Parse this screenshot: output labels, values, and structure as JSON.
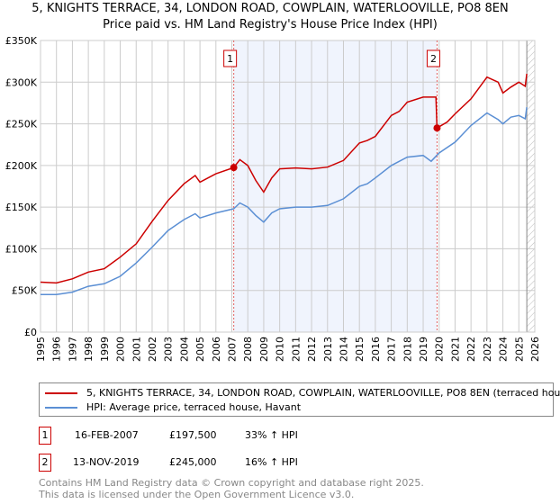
{
  "title": "5, KNIGHTS TERRACE, 34, LONDON ROAD, COWPLAIN, WATERLOOVILLE, PO8 8EN",
  "subtitle": "Price paid vs. HM Land Registry's House Price Index (HPI)",
  "chart_data": {
    "type": "line",
    "title": "5, KNIGHTS TERRACE, 34, LONDON ROAD, COWPLAIN, WATERLOOVILLE, PO8 8EN",
    "subtitle": "Price paid vs. HM Land Registry's House Price Index (HPI)",
    "xlim": [
      1995,
      2026
    ],
    "ylim": [
      0,
      350000
    ],
    "x_ticks": [
      "1995",
      "1996",
      "1997",
      "1998",
      "1999",
      "2000",
      "2001",
      "2002",
      "2003",
      "2004",
      "2005",
      "2006",
      "2007",
      "2008",
      "2009",
      "2010",
      "2011",
      "2012",
      "2013",
      "2014",
      "2015",
      "2016",
      "2017",
      "2018",
      "2019",
      "2020",
      "2021",
      "2022",
      "2023",
      "2024",
      "2025",
      "2026"
    ],
    "y_ticks": [
      {
        "v": 0,
        "l": "£0"
      },
      {
        "v": 50000,
        "l": "£50K"
      },
      {
        "v": 100000,
        "l": "£100K"
      },
      {
        "v": 150000,
        "l": "£150K"
      },
      {
        "v": 200000,
        "l": "£200K"
      },
      {
        "v": 250000,
        "l": "£250K"
      },
      {
        "v": 300000,
        "l": "£300K"
      },
      {
        "v": 350000,
        "l": "£350K"
      }
    ],
    "grid": true,
    "series": [
      {
        "name": "5, KNIGHTS TERRACE, 34, LONDON ROAD, COWPLAIN, WATERLOOVILLE, PO8 8EN (terraced hou",
        "color": "#cc0000",
        "x": [
          1995,
          1996,
          1997,
          1998,
          1999,
          2000,
          2001,
          2002,
          2003,
          2004,
          2004.7,
          2005,
          2006,
          2007.12,
          2007.5,
          2008,
          2008.5,
          2009,
          2009.5,
          2010,
          2011,
          2012,
          2013,
          2014,
          2015,
          2015.5,
          2016,
          2017,
          2017.5,
          2018,
          2019,
          2019.8,
          2019.87,
          2020.5,
          2021,
          2022,
          2023,
          2023.7,
          2024,
          2024.5,
          2025,
          2025.4,
          2025.5
        ],
        "y": [
          60000,
          59000,
          64000,
          72000,
          76000,
          90000,
          106000,
          133000,
          158000,
          178000,
          188000,
          180000,
          190000,
          197500,
          207000,
          200000,
          182000,
          168000,
          185000,
          196000,
          197000,
          196000,
          198000,
          206000,
          227000,
          230000,
          235000,
          260000,
          265000,
          276000,
          282000,
          282000,
          245000,
          252000,
          262000,
          280000,
          306000,
          300000,
          287000,
          294000,
          300000,
          295000,
          310000
        ]
      },
      {
        "name": "HPI: Average price, terraced house, Havant",
        "color": "#5b8fd4",
        "x": [
          1995,
          1996,
          1997,
          1998,
          1999,
          2000,
          2001,
          2002,
          2003,
          2004,
          2004.7,
          2005,
          2006,
          2007.12,
          2007.5,
          2008,
          2008.5,
          2009,
          2009.5,
          2010,
          2011,
          2012,
          2013,
          2014,
          2015,
          2015.5,
          2016,
          2017,
          2018,
          2019,
          2019.5,
          2020,
          2021,
          2022,
          2023,
          2023.7,
          2024,
          2024.5,
          2025,
          2025.4,
          2025.5
        ],
        "y": [
          45000,
          45000,
          48000,
          55000,
          58000,
          67000,
          83000,
          102000,
          122000,
          135000,
          142000,
          137000,
          143000,
          148000,
          155000,
          150000,
          140000,
          132000,
          143000,
          148000,
          150000,
          150000,
          152000,
          160000,
          175000,
          178000,
          185000,
          200000,
          210000,
          212000,
          205000,
          215000,
          228000,
          248000,
          263000,
          255000,
          250000,
          258000,
          260000,
          256000,
          270000
        ]
      }
    ],
    "markers": [
      {
        "label": "1",
        "x": 2007.12,
        "y": 197500
      },
      {
        "label": "2",
        "x": 2019.87,
        "y": 245000
      }
    ],
    "shaded_range": [
      2007.12,
      2019.87
    ],
    "hatched_from": 2025.5,
    "legend_position": "bottom"
  },
  "legend": {
    "items": [
      "5, KNIGHTS TERRACE, 34, LONDON ROAD, COWPLAIN, WATERLOOVILLE, PO8 8EN (terraced hou",
      "HPI: Average price, terraced house, Havant"
    ]
  },
  "transactions": [
    {
      "num": "1",
      "date": "16-FEB-2007",
      "price": "£197,500",
      "hpi": "33% ↑ HPI"
    },
    {
      "num": "2",
      "date": "13-NOV-2019",
      "price": "£245,000",
      "hpi": "16% ↑ HPI"
    }
  ],
  "footer": {
    "line1": "Contains HM Land Registry data © Crown copyright and database right 2025.",
    "line2": "This data is licensed under the Open Government Licence v3.0."
  }
}
